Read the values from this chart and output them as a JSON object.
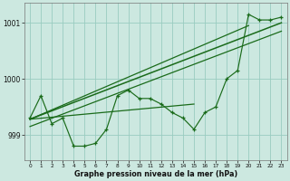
{
  "xlabel": "Graphe pression niveau de la mer (hPa)",
  "background_color": "#cce8e0",
  "grid_color": "#99ccc0",
  "line_color": "#1a6b1a",
  "x_values": [
    0,
    1,
    2,
    3,
    4,
    5,
    6,
    7,
    8,
    9,
    10,
    11,
    12,
    13,
    14,
    15,
    16,
    17,
    18,
    19,
    20,
    21,
    22,
    23
  ],
  "y_main": [
    999.3,
    999.7,
    999.2,
    999.3,
    998.8,
    998.8,
    998.85,
    999.1,
    999.7,
    999.8,
    999.65,
    999.65,
    999.55,
    999.4,
    999.3,
    999.1,
    999.4,
    999.5,
    1000.0,
    1000.15,
    1001.15,
    1001.05,
    1001.05,
    1001.1
  ],
  "ylim": [
    998.55,
    1001.35
  ],
  "xlim": [
    -0.5,
    23.5
  ],
  "yticks": [
    999,
    1000,
    1001
  ],
  "xticks": [
    0,
    1,
    2,
    3,
    4,
    5,
    6,
    7,
    8,
    9,
    10,
    11,
    12,
    13,
    14,
    15,
    16,
    17,
    18,
    19,
    20,
    21,
    22,
    23
  ],
  "trend1_x": [
    0,
    23
  ],
  "trend1_y": [
    999.28,
    1001.0
  ],
  "trend2_x": [
    0,
    23
  ],
  "trend2_y": [
    999.15,
    1000.85
  ],
  "trend3_x": [
    0,
    20
  ],
  "trend3_y": [
    999.28,
    1000.95
  ],
  "trend4_x": [
    0,
    15
  ],
  "trend4_y": [
    999.28,
    999.55
  ]
}
